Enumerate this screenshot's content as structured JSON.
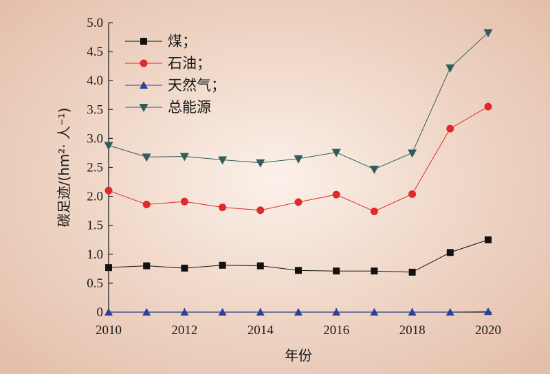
{
  "chart_data": {
    "type": "line",
    "xlabel": "年份",
    "ylabel": "碳足迹/(hm²· 人⁻¹)",
    "xlim": [
      2010,
      2020
    ],
    "ylim": [
      0,
      5.0
    ],
    "x": [
      2010,
      2011,
      2012,
      2013,
      2014,
      2015,
      2016,
      2017,
      2018,
      2019,
      2020
    ],
    "xticks": [
      "2010",
      "2012",
      "2014",
      "2016",
      "2018",
      "2020"
    ],
    "yticks": [
      "0",
      "0.5",
      "1.0",
      "1.5",
      "2.0",
      "2.5",
      "3.0",
      "3.5",
      "4.0",
      "4.5",
      "5.0"
    ],
    "grid": false,
    "legend_position": "top-left",
    "series": [
      {
        "name": "煤；",
        "marker": "square",
        "color": "#111111",
        "values": [
          0.77,
          0.8,
          0.76,
          0.81,
          0.8,
          0.72,
          0.71,
          0.71,
          0.69,
          1.03,
          1.25
        ]
      },
      {
        "name": "石油；",
        "marker": "circle",
        "color": "#e02a2a",
        "values": [
          2.1,
          1.86,
          1.91,
          1.81,
          1.76,
          1.9,
          2.03,
          1.74,
          2.04,
          3.17,
          3.55
        ]
      },
      {
        "name": "天然气；",
        "marker": "triangle-up",
        "color": "#2c3f9c",
        "values": [
          0.0,
          0.0,
          0.0,
          0.0,
          0.0,
          0.0,
          0.0,
          0.0,
          0.0,
          0.0,
          0.01
        ]
      },
      {
        "name": "总能源",
        "marker": "triangle-down",
        "color": "#2e5d5c",
        "values": [
          2.88,
          2.68,
          2.69,
          2.63,
          2.58,
          2.65,
          2.76,
          2.47,
          2.75,
          4.22,
          4.83
        ]
      }
    ]
  }
}
